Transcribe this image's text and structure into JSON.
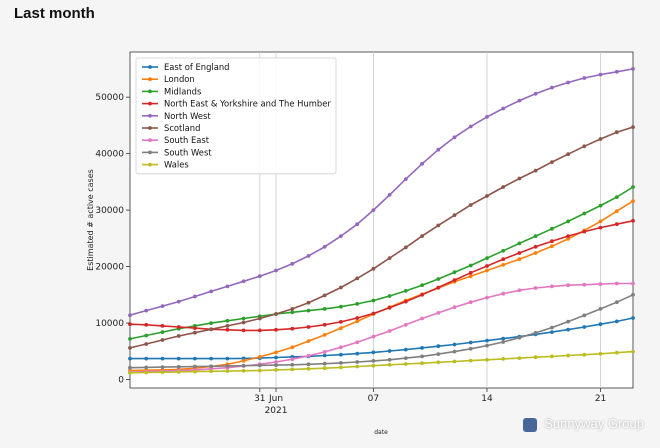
{
  "page": {
    "title": "Last month",
    "watermark": "Sunnyway Group"
  },
  "colors": {
    "East of England": "#1f77b4",
    "London": "#ff7f0e",
    "Midlands": "#2ca02c",
    "North East & Yorkshire and The Humber": "#d62728",
    "North West": "#9467bd",
    "Scotland": "#8c564b",
    "South East": "#e377c2",
    "South West": "#7f7f7f",
    "Wales": "#bcbd22"
  },
  "chart_data": {
    "type": "line",
    "title": "",
    "xlabel": "date",
    "ylabel": "Estimated # active cases",
    "grid": "vertical",
    "legend_placement": "top-left",
    "xlim": [
      "2021-05-23",
      "2021-06-23"
    ],
    "ylim": [
      -1500,
      58000
    ],
    "x_ticks": [
      {
        "date": "2021-05-31",
        "label": "31"
      },
      {
        "date": "2021-06-01",
        "label": "Jun",
        "sublabel": "2021"
      },
      {
        "date": "2021-06-07",
        "label": "07"
      },
      {
        "date": "2021-06-14",
        "label": "14"
      },
      {
        "date": "2021-06-21",
        "label": "21"
      }
    ],
    "y_ticks": [
      {
        "value": 0,
        "label": "0"
      },
      {
        "value": 10000,
        "label": "10000"
      },
      {
        "value": 20000,
        "label": "20000"
      },
      {
        "value": 30000,
        "label": "30000"
      },
      {
        "value": 40000,
        "label": "40000"
      },
      {
        "value": 50000,
        "label": "50000"
      }
    ],
    "x": [
      "2021-05-23",
      "2021-05-24",
      "2021-05-25",
      "2021-05-26",
      "2021-05-27",
      "2021-05-28",
      "2021-05-29",
      "2021-05-30",
      "2021-05-31",
      "2021-06-01",
      "2021-06-02",
      "2021-06-03",
      "2021-06-04",
      "2021-06-05",
      "2021-06-06",
      "2021-06-07",
      "2021-06-08",
      "2021-06-09",
      "2021-06-10",
      "2021-06-11",
      "2021-06-12",
      "2021-06-13",
      "2021-06-14",
      "2021-06-15",
      "2021-06-16",
      "2021-06-17",
      "2021-06-18",
      "2021-06-19",
      "2021-06-20",
      "2021-06-21",
      "2021-06-22",
      "2021-06-23"
    ],
    "series": [
      {
        "name": "East of England",
        "values": [
          3700,
          3700,
          3700,
          3700,
          3700,
          3700,
          3700,
          3750,
          3800,
          3900,
          4000,
          4100,
          4250,
          4400,
          4600,
          4800,
          5050,
          5300,
          5600,
          5900,
          6200,
          6550,
          6900,
          7250,
          7600,
          8000,
          8400,
          8850,
          9300,
          9800,
          10300,
          10900
        ]
      },
      {
        "name": "London",
        "values": [
          1600,
          1650,
          1700,
          1800,
          2000,
          2300,
          2700,
          3300,
          4000,
          4800,
          5700,
          6800,
          7900,
          9100,
          10300,
          11600,
          12800,
          14000,
          15100,
          16200,
          17300,
          18300,
          19300,
          20300,
          21300,
          22400,
          23600,
          24900,
          26400,
          28000,
          29800,
          31600
        ]
      },
      {
        "name": "Midlands",
        "values": [
          7200,
          7800,
          8400,
          9000,
          9500,
          10000,
          10400,
          10800,
          11200,
          11600,
          11900,
          12200,
          12500,
          12900,
          13400,
          14000,
          14800,
          15700,
          16700,
          17800,
          19000,
          20200,
          21500,
          22800,
          24100,
          25400,
          26700,
          28000,
          29400,
          30800,
          32300,
          34100
        ]
      },
      {
        "name": "North East & Yorkshire and The Humber",
        "values": [
          9800,
          9700,
          9500,
          9300,
          9100,
          8900,
          8800,
          8700,
          8700,
          8800,
          9000,
          9300,
          9700,
          10200,
          10900,
          11700,
          12700,
          13800,
          15000,
          16300,
          17600,
          18900,
          20100,
          21300,
          22400,
          23500,
          24500,
          25400,
          26200,
          26900,
          27500,
          28100
        ]
      },
      {
        "name": "North West",
        "values": [
          11400,
          12200,
          13000,
          13800,
          14700,
          15600,
          16500,
          17400,
          18300,
          19300,
          20500,
          21900,
          23500,
          25400,
          27500,
          30000,
          32700,
          35500,
          38200,
          40700,
          42900,
          44800,
          46500,
          48000,
          49400,
          50600,
          51700,
          52600,
          53400,
          54000,
          54500,
          55000
        ]
      },
      {
        "name": "Scotland",
        "values": [
          5600,
          6300,
          7000,
          7700,
          8300,
          8900,
          9500,
          10100,
          10800,
          11600,
          12500,
          13600,
          14900,
          16300,
          17900,
          19600,
          21500,
          23400,
          25400,
          27300,
          29100,
          30900,
          32500,
          34100,
          35600,
          37000,
          38500,
          39900,
          41300,
          42600,
          43800,
          44700
        ]
      },
      {
        "name": "South East",
        "values": [
          1300,
          1400,
          1500,
          1600,
          1700,
          1900,
          2100,
          2400,
          2700,
          3100,
          3600,
          4200,
          4900,
          5700,
          6600,
          7600,
          8600,
          9700,
          10800,
          11800,
          12800,
          13700,
          14500,
          15200,
          15800,
          16200,
          16500,
          16700,
          16800,
          16900,
          17000,
          17000
        ]
      },
      {
        "name": "South West",
        "values": [
          2100,
          2150,
          2200,
          2250,
          2300,
          2350,
          2400,
          2450,
          2500,
          2550,
          2600,
          2700,
          2800,
          2950,
          3100,
          3300,
          3500,
          3800,
          4100,
          4500,
          4950,
          5450,
          6000,
          6650,
          7400,
          8250,
          9200,
          10250,
          11350,
          12500,
          13700,
          15000
        ]
      },
      {
        "name": "Wales",
        "values": [
          1200,
          1250,
          1300,
          1350,
          1400,
          1450,
          1500,
          1550,
          1600,
          1700,
          1800,
          1900,
          2000,
          2150,
          2300,
          2450,
          2600,
          2750,
          2900,
          3050,
          3200,
          3350,
          3500,
          3650,
          3800,
          3950,
          4100,
          4250,
          4400,
          4550,
          4750,
          4950
        ]
      }
    ]
  }
}
